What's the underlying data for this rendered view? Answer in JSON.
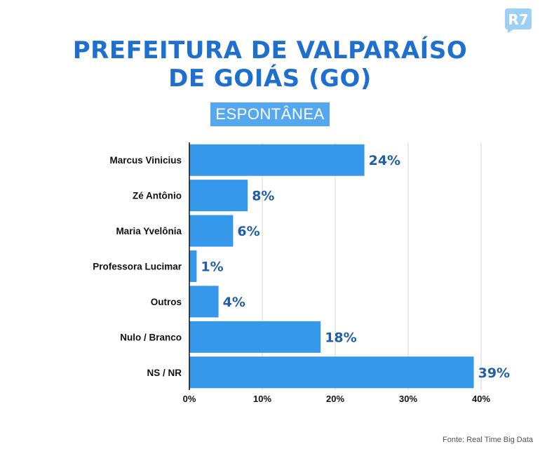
{
  "title_line1": "PREFEITURA DE VALPARAÍSO",
  "title_line2": "DE GOIÁS (GO)",
  "subtitle": "ESPONTÂNEA",
  "logo_text": "R7",
  "source": "Fonte: Real Time Big Data",
  "colors": {
    "bar": "#3598eb",
    "title": "#1f6fd0",
    "value_label": "#1f5fa8",
    "subtitle_bg": "#55a8f0"
  },
  "chart_data": {
    "type": "bar",
    "orientation": "horizontal",
    "categories": [
      "Marcus Vinicius",
      "Zé Antônio",
      "Maria Yvelônia",
      "Professora Lucimar",
      "Outros",
      "Nulo / Branco",
      "NS / NR"
    ],
    "values": [
      24,
      8,
      6,
      1,
      4,
      18,
      39
    ],
    "value_labels": [
      "24%",
      "8%",
      "6%",
      "1%",
      "4%",
      "18%",
      "39%"
    ],
    "x_ticks": [
      0,
      10,
      20,
      30,
      40
    ],
    "x_tick_labels": [
      "0%",
      "10%",
      "20%",
      "30%",
      "40%"
    ],
    "xlim": [
      0,
      40
    ],
    "grid": true,
    "title": "PREFEITURA DE VALPARAÍSO DE GOIÁS (GO)",
    "subtitle": "ESPONTÂNEA"
  }
}
